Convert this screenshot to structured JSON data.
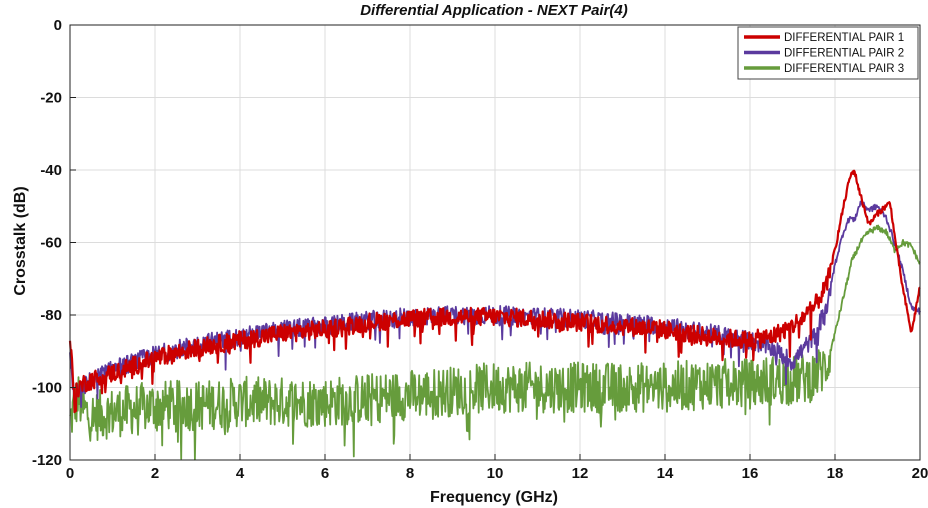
{
  "chart_data": {
    "type": "line",
    "title": "Differential Application - NEXT Pair(4)",
    "xlabel": "Frequency (GHz)",
    "ylabel": "Crosstalk (dB)",
    "xlim": [
      0,
      20
    ],
    "ylim": [
      -120,
      0
    ],
    "xticks": [
      0,
      2,
      4,
      6,
      8,
      10,
      12,
      14,
      16,
      18,
      20
    ],
    "yticks": [
      0,
      -20,
      -40,
      -60,
      -80,
      -100,
      -120
    ],
    "grid": true,
    "legend_position": "top-right",
    "series": [
      {
        "name": "DIFFERENTIAL PAIR 1",
        "color": "#cc0000",
        "x": [
          0,
          0.05,
          0.1,
          0.2,
          0.3,
          0.5,
          1,
          1.5,
          2,
          3,
          4,
          5,
          6,
          7,
          8,
          9,
          10,
          11,
          12,
          13,
          14,
          15,
          16,
          16.5,
          17,
          17.5,
          17.8,
          18,
          18.2,
          18.35,
          18.45,
          18.6,
          18.8,
          19,
          19.1,
          19.3,
          19.4,
          19.6,
          19.8,
          20
        ],
        "y": [
          -86,
          -95,
          -103,
          -100,
          -99,
          -98,
          -96,
          -94,
          -92,
          -89,
          -87,
          -85,
          -84,
          -82,
          -81,
          -80.5,
          -80.5,
          -81,
          -82,
          -83,
          -84,
          -86,
          -87,
          -86,
          -83,
          -78,
          -72,
          -62,
          -50,
          -42,
          -40,
          -47,
          -55,
          -52,
          -51,
          -49,
          -58,
          -73,
          -85,
          -72
        ]
      },
      {
        "name": "DIFFERENTIAL PAIR 2",
        "color": "#5b3a9e",
        "x": [
          0,
          0.05,
          0.1,
          0.2,
          0.3,
          0.5,
          1,
          1.5,
          2,
          3,
          4,
          5,
          6,
          7,
          8,
          9,
          10,
          11,
          12,
          13,
          14,
          15,
          16,
          16.5,
          17,
          17.5,
          17.8,
          18,
          18.2,
          18.35,
          18.45,
          18.6,
          18.8,
          19,
          19.2,
          19.4,
          19.6,
          19.8,
          20
        ],
        "y": [
          -90,
          -98,
          -103,
          -101,
          -100,
          -98,
          -95,
          -93,
          -91,
          -88,
          -86,
          -84,
          -83,
          -81.5,
          -80.5,
          -80,
          -80,
          -80.5,
          -81,
          -82,
          -83,
          -85,
          -87,
          -89,
          -93,
          -86,
          -78,
          -66,
          -57,
          -53,
          -54,
          -49,
          -51,
          -50,
          -53,
          -60,
          -68,
          -78,
          -79
        ]
      },
      {
        "name": "DIFFERENTIAL PAIR 3",
        "color": "#669c3c",
        "x": [
          0,
          0.1,
          0.2,
          0.3,
          0.5,
          1,
          1.5,
          2,
          3,
          4,
          5,
          6,
          7,
          8,
          9,
          10,
          11,
          12,
          13,
          14,
          15,
          16,
          16.5,
          17,
          17.5,
          17.8,
          18,
          18.2,
          18.4,
          18.6,
          18.8,
          19,
          19.2,
          19.4,
          19.6,
          19.8,
          20
        ],
        "y": [
          -110,
          -105,
          -103,
          -106,
          -108,
          -107,
          -106,
          -105,
          -105,
          -104,
          -104,
          -104,
          -103,
          -102,
          -101,
          -100,
          -100,
          -100,
          -100,
          -100,
          -99,
          -99,
          -98,
          -98,
          -97,
          -94,
          -85,
          -75,
          -65,
          -60,
          -57,
          -56,
          -57,
          -62,
          -60,
          -61,
          -66
        ]
      }
    ]
  }
}
